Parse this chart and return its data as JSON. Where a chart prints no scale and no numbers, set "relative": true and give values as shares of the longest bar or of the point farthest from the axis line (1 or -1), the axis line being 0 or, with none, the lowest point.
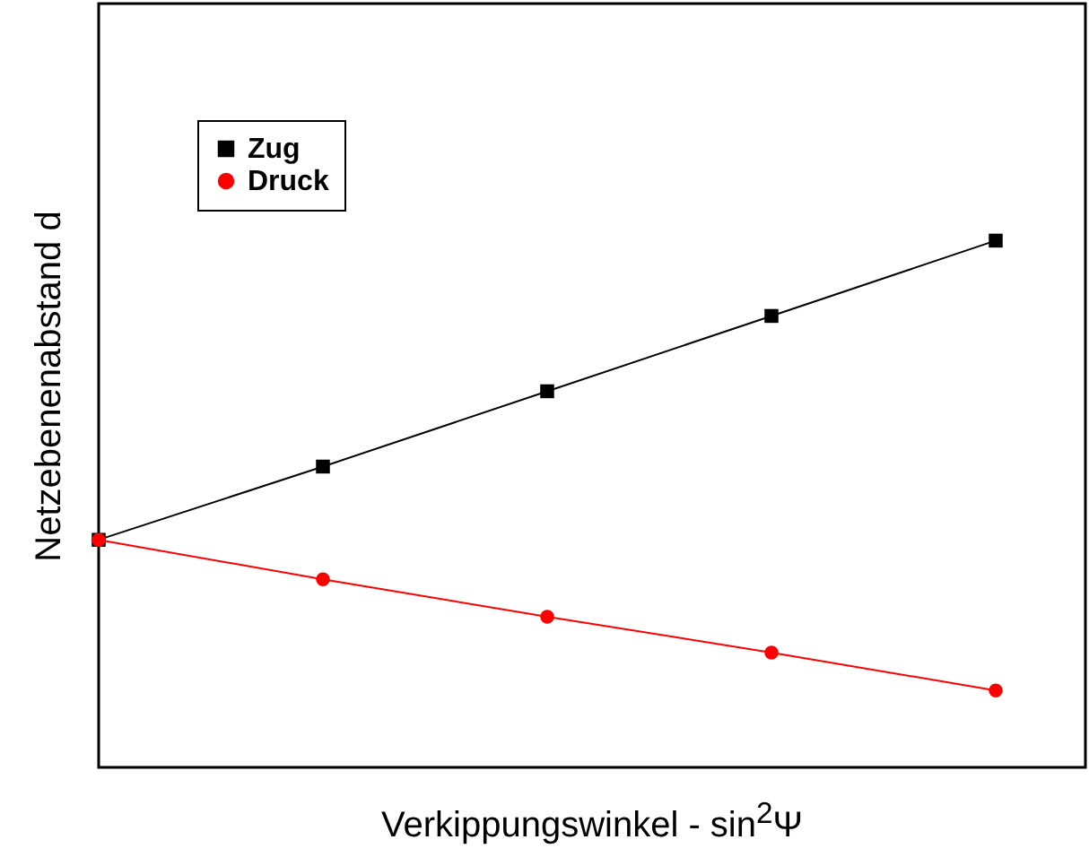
{
  "chart_data": {
    "type": "line",
    "xlabel": "Verkippungswinkel - sin$^{2}$Ψ",
    "ylabel": "Netzebenenabstand d",
    "relative": true,
    "tick_labels": false,
    "grid": false,
    "legend": "top left",
    "categories": [
      null,
      null,
      null,
      null,
      null
    ],
    "series": [
      {
        "name": "Zug",
        "color": "#000000",
        "marker": "square",
        "values": [
          0.432,
          0.571,
          0.714,
          0.857,
          1
        ]
      },
      {
        "name": "Druck",
        "color": "#ff0000",
        "marker": "circle",
        "values": [
          0.432,
          0.357,
          0.286,
          0.218,
          0.146
        ]
      }
    ]
  }
}
